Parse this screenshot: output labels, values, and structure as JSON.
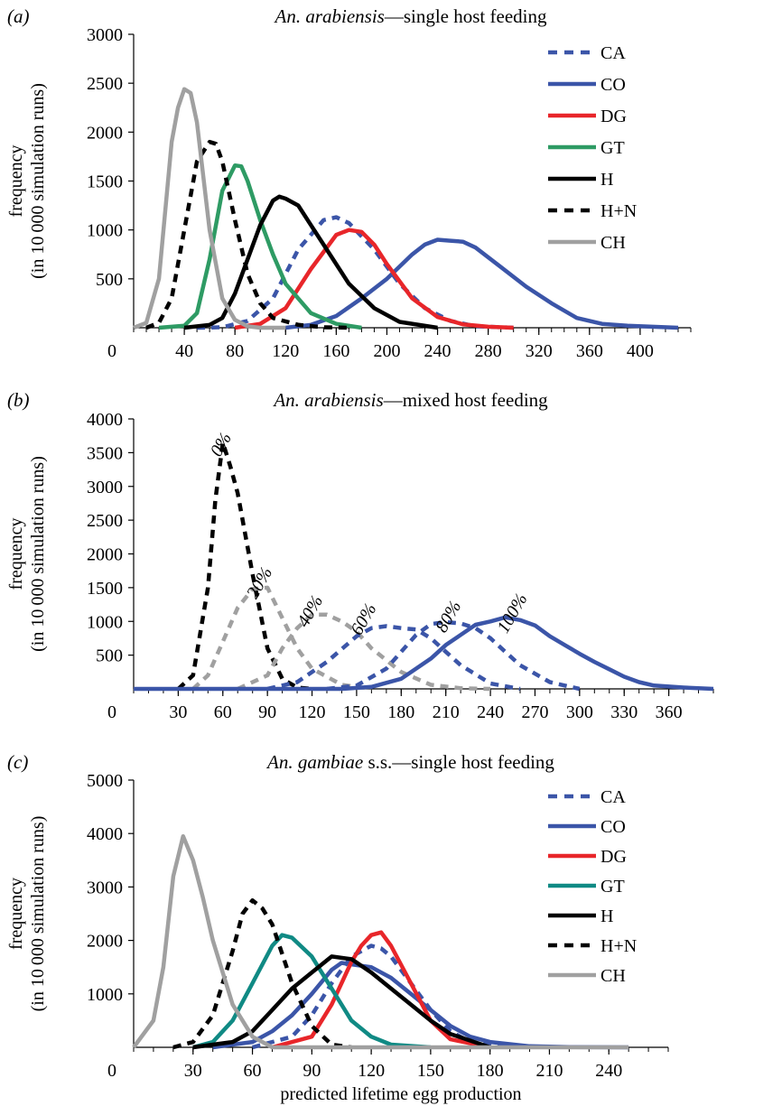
{
  "chart_data": [
    {
      "type": "line",
      "panel_label": "(a)",
      "title_italic": "An. arabiensis",
      "title_rest": "—single host feeding",
      "xlabel": "",
      "ylabel_line1": "frequency",
      "ylabel_line2": "(in 10 000 simulation runs)",
      "xlim": [
        0,
        440
      ],
      "ylim": [
        0,
        3000
      ],
      "xticks": [
        0,
        40,
        80,
        120,
        160,
        200,
        240,
        280,
        320,
        360,
        400
      ],
      "yticks": [
        500,
        1000,
        1500,
        2000,
        2500,
        3000
      ],
      "legend_position": "top-right",
      "series": [
        {
          "name": "CA",
          "color": "#3b55a8",
          "style": "dotted",
          "x": [
            50,
            70,
            90,
            110,
            130,
            150,
            160,
            170,
            190,
            210,
            230,
            250,
            270,
            300
          ],
          "y": [
            0,
            5,
            70,
            300,
            800,
            1100,
            1130,
            1070,
            800,
            450,
            200,
            70,
            15,
            0
          ]
        },
        {
          "name": "CO",
          "color": "#3b55a8",
          "style": "solid",
          "x": [
            120,
            140,
            160,
            180,
            200,
            220,
            230,
            240,
            250,
            260,
            270,
            290,
            310,
            330,
            350,
            370,
            390,
            410,
            430
          ],
          "y": [
            0,
            30,
            120,
            300,
            500,
            750,
            850,
            900,
            890,
            880,
            820,
            620,
            420,
            250,
            100,
            40,
            20,
            10,
            0
          ]
        },
        {
          "name": "DG",
          "color": "#e8262a",
          "style": "solid",
          "x": [
            80,
            100,
            120,
            140,
            160,
            170,
            180,
            190,
            200,
            220,
            240,
            260,
            280,
            300
          ],
          "y": [
            0,
            40,
            200,
            600,
            950,
            1000,
            980,
            850,
            650,
            300,
            110,
            35,
            10,
            0
          ]
        },
        {
          "name": "GT",
          "color": "#2e9b64",
          "style": "solid",
          "x": [
            20,
            40,
            50,
            60,
            70,
            80,
            85,
            90,
            100,
            110,
            120,
            140,
            160,
            180
          ],
          "y": [
            0,
            20,
            150,
            700,
            1400,
            1660,
            1650,
            1500,
            1100,
            750,
            450,
            150,
            40,
            0
          ]
        },
        {
          "name": "H",
          "color": "#000000",
          "style": "solid",
          "x": [
            40,
            60,
            70,
            80,
            90,
            100,
            110,
            115,
            120,
            130,
            140,
            150,
            170,
            190,
            210,
            240
          ],
          "y": [
            0,
            30,
            100,
            350,
            700,
            1050,
            1300,
            1340,
            1320,
            1250,
            1050,
            850,
            450,
            200,
            60,
            0
          ]
        },
        {
          "name": "H+N",
          "color": "#000000",
          "style": "dotted",
          "x": [
            10,
            20,
            30,
            40,
            50,
            60,
            65,
            70,
            80,
            90,
            100,
            110,
            130,
            150,
            170
          ],
          "y": [
            0,
            50,
            300,
            1000,
            1700,
            1900,
            1880,
            1700,
            1100,
            550,
            250,
            100,
            30,
            5,
            0
          ]
        },
        {
          "name": "CH",
          "color": "#a0a0a0",
          "style": "solid",
          "x": [
            0,
            10,
            20,
            30,
            35,
            40,
            45,
            50,
            60,
            70,
            80,
            90,
            100,
            120
          ],
          "y": [
            0,
            50,
            500,
            1900,
            2250,
            2440,
            2400,
            2100,
            1000,
            300,
            80,
            15,
            0,
            0
          ]
        }
      ]
    },
    {
      "type": "line",
      "panel_label": "(b)",
      "title_italic": "An. arabiensis",
      "title_rest": "—mixed host feeding",
      "xlabel": "",
      "ylabel_line1": "frequency",
      "ylabel_line2": "(in 10 000 simulation runs)",
      "xlim": [
        0,
        390
      ],
      "ylim": [
        0,
        4000
      ],
      "xticks": [
        0,
        30,
        60,
        90,
        120,
        150,
        180,
        210,
        240,
        270,
        300,
        330,
        360
      ],
      "yticks": [
        500,
        1000,
        1500,
        2000,
        2500,
        3000,
        3500,
        4000
      ],
      "annotations": [
        {
          "text": "0%",
          "x": 62,
          "y": 3580
        },
        {
          "text": "20%",
          "x": 88,
          "y": 1530
        },
        {
          "text": "40%",
          "x": 122,
          "y": 1110
        },
        {
          "text": "60%",
          "x": 158,
          "y": 990
        },
        {
          "text": "80%",
          "x": 215,
          "y": 1030
        },
        {
          "text": "100%",
          "x": 258,
          "y": 1080
        }
      ],
      "series": [
        {
          "name": "0%",
          "color": "#000000",
          "style": "dotted",
          "x": [
            30,
            40,
            50,
            55,
            60,
            65,
            70,
            80,
            90,
            100,
            110,
            120
          ],
          "y": [
            0,
            200,
            1500,
            2800,
            3650,
            3300,
            2900,
            1700,
            600,
            150,
            20,
            0
          ]
        },
        {
          "name": "20%",
          "color": "#a0a0a0",
          "style": "dotted",
          "x": [
            40,
            50,
            60,
            70,
            80,
            90,
            100,
            110,
            120,
            140,
            160
          ],
          "y": [
            0,
            200,
            700,
            1200,
            1480,
            1500,
            1050,
            600,
            300,
            60,
            0
          ]
        },
        {
          "name": "40%",
          "color": "#a0a0a0",
          "style": "dotted",
          "x": [
            70,
            90,
            100,
            110,
            120,
            130,
            140,
            150,
            160,
            180,
            200,
            220,
            240
          ],
          "y": [
            0,
            200,
            600,
            900,
            1100,
            1100,
            1000,
            850,
            600,
            250,
            60,
            10,
            0
          ]
        },
        {
          "name": "60%",
          "color": "#3b55a8",
          "style": "dotted",
          "x": [
            90,
            110,
            130,
            150,
            160,
            170,
            180,
            190,
            200,
            210,
            220,
            240,
            260
          ],
          "y": [
            0,
            100,
            400,
            780,
            900,
            930,
            900,
            880,
            750,
            550,
            350,
            80,
            0
          ]
        },
        {
          "name": "80%",
          "color": "#3b55a8",
          "style": "dotted",
          "x": [
            130,
            150,
            170,
            190,
            200,
            210,
            220,
            230,
            240,
            250,
            260,
            280,
            300
          ],
          "y": [
            0,
            50,
            300,
            800,
            960,
            990,
            970,
            900,
            750,
            550,
            350,
            100,
            0
          ]
        },
        {
          "name": "100%",
          "color": "#3b55a8",
          "style": "solid",
          "x": [
            0,
            140,
            160,
            180,
            200,
            210,
            220,
            230,
            240,
            250,
            260,
            270,
            280,
            290,
            300,
            310,
            320,
            330,
            340,
            350,
            370,
            390
          ],
          "y": [
            0,
            0,
            30,
            150,
            450,
            650,
            800,
            950,
            1000,
            1060,
            1020,
            940,
            780,
            650,
            520,
            400,
            290,
            180,
            100,
            50,
            20,
            0
          ]
        }
      ]
    },
    {
      "type": "line",
      "panel_label": "(c)",
      "title_italic": "An. gambiae",
      "title_rest": " s.s.—single host feeding",
      "xlabel": "predicted lifetime egg production",
      "ylabel_line1": "frequency",
      "ylabel_line2": "(in 10 000 simulation runs)",
      "xlim": [
        0,
        270
      ],
      "ylim": [
        0,
        5000
      ],
      "xticks": [
        0,
        30,
        60,
        90,
        120,
        150,
        180,
        210,
        240
      ],
      "yticks": [
        1000,
        2000,
        3000,
        4000,
        5000
      ],
      "legend_position": "top-right",
      "series": [
        {
          "name": "CA",
          "color": "#3b55a8",
          "style": "dotted",
          "x": [
            60,
            80,
            90,
            100,
            110,
            120,
            125,
            130,
            140,
            150,
            160,
            170,
            190
          ],
          "y": [
            0,
            200,
            600,
            1200,
            1700,
            1900,
            1850,
            1700,
            1200,
            700,
            300,
            100,
            0
          ]
        },
        {
          "name": "CO",
          "color": "#3b55a8",
          "style": "solid",
          "x": [
            40,
            60,
            70,
            80,
            90,
            100,
            105,
            110,
            120,
            130,
            140,
            150,
            160,
            170,
            180,
            200,
            220,
            250
          ],
          "y": [
            0,
            100,
            300,
            600,
            1000,
            1450,
            1580,
            1550,
            1500,
            1300,
            1000,
            700,
            400,
            200,
            100,
            20,
            5,
            0
          ]
        },
        {
          "name": "DG",
          "color": "#e8262a",
          "style": "solid",
          "x": [
            70,
            90,
            100,
            110,
            115,
            120,
            125,
            130,
            140,
            150,
            160,
            180
          ],
          "y": [
            0,
            200,
            800,
            1600,
            1900,
            2100,
            2150,
            1900,
            1200,
            500,
            150,
            0
          ]
        },
        {
          "name": "GT",
          "color": "#108a84",
          "style": "solid",
          "x": [
            30,
            40,
            50,
            60,
            70,
            75,
            80,
            90,
            100,
            110,
            120,
            130,
            150
          ],
          "y": [
            0,
            100,
            500,
            1200,
            1900,
            2100,
            2050,
            1700,
            1100,
            500,
            200,
            50,
            0
          ]
        },
        {
          "name": "H",
          "color": "#000000",
          "style": "solid",
          "x": [
            30,
            50,
            60,
            70,
            80,
            90,
            100,
            110,
            120,
            130,
            140,
            150,
            160,
            180
          ],
          "y": [
            0,
            100,
            300,
            700,
            1100,
            1400,
            1700,
            1650,
            1400,
            1100,
            800,
            500,
            250,
            0
          ]
        },
        {
          "name": "H+N",
          "color": "#000000",
          "style": "dotted",
          "x": [
            20,
            30,
            40,
            50,
            55,
            60,
            65,
            70,
            80,
            90,
            100,
            110
          ],
          "y": [
            0,
            100,
            600,
            1800,
            2500,
            2750,
            2600,
            2300,
            1200,
            400,
            50,
            0
          ]
        },
        {
          "name": "CH",
          "color": "#a0a0a0",
          "style": "solid",
          "x": [
            0,
            10,
            15,
            20,
            25,
            30,
            35,
            40,
            50,
            60,
            70,
            250
          ],
          "y": [
            0,
            500,
            1500,
            3200,
            3950,
            3500,
            2800,
            2000,
            800,
            200,
            0,
            0
          ]
        }
      ]
    }
  ]
}
